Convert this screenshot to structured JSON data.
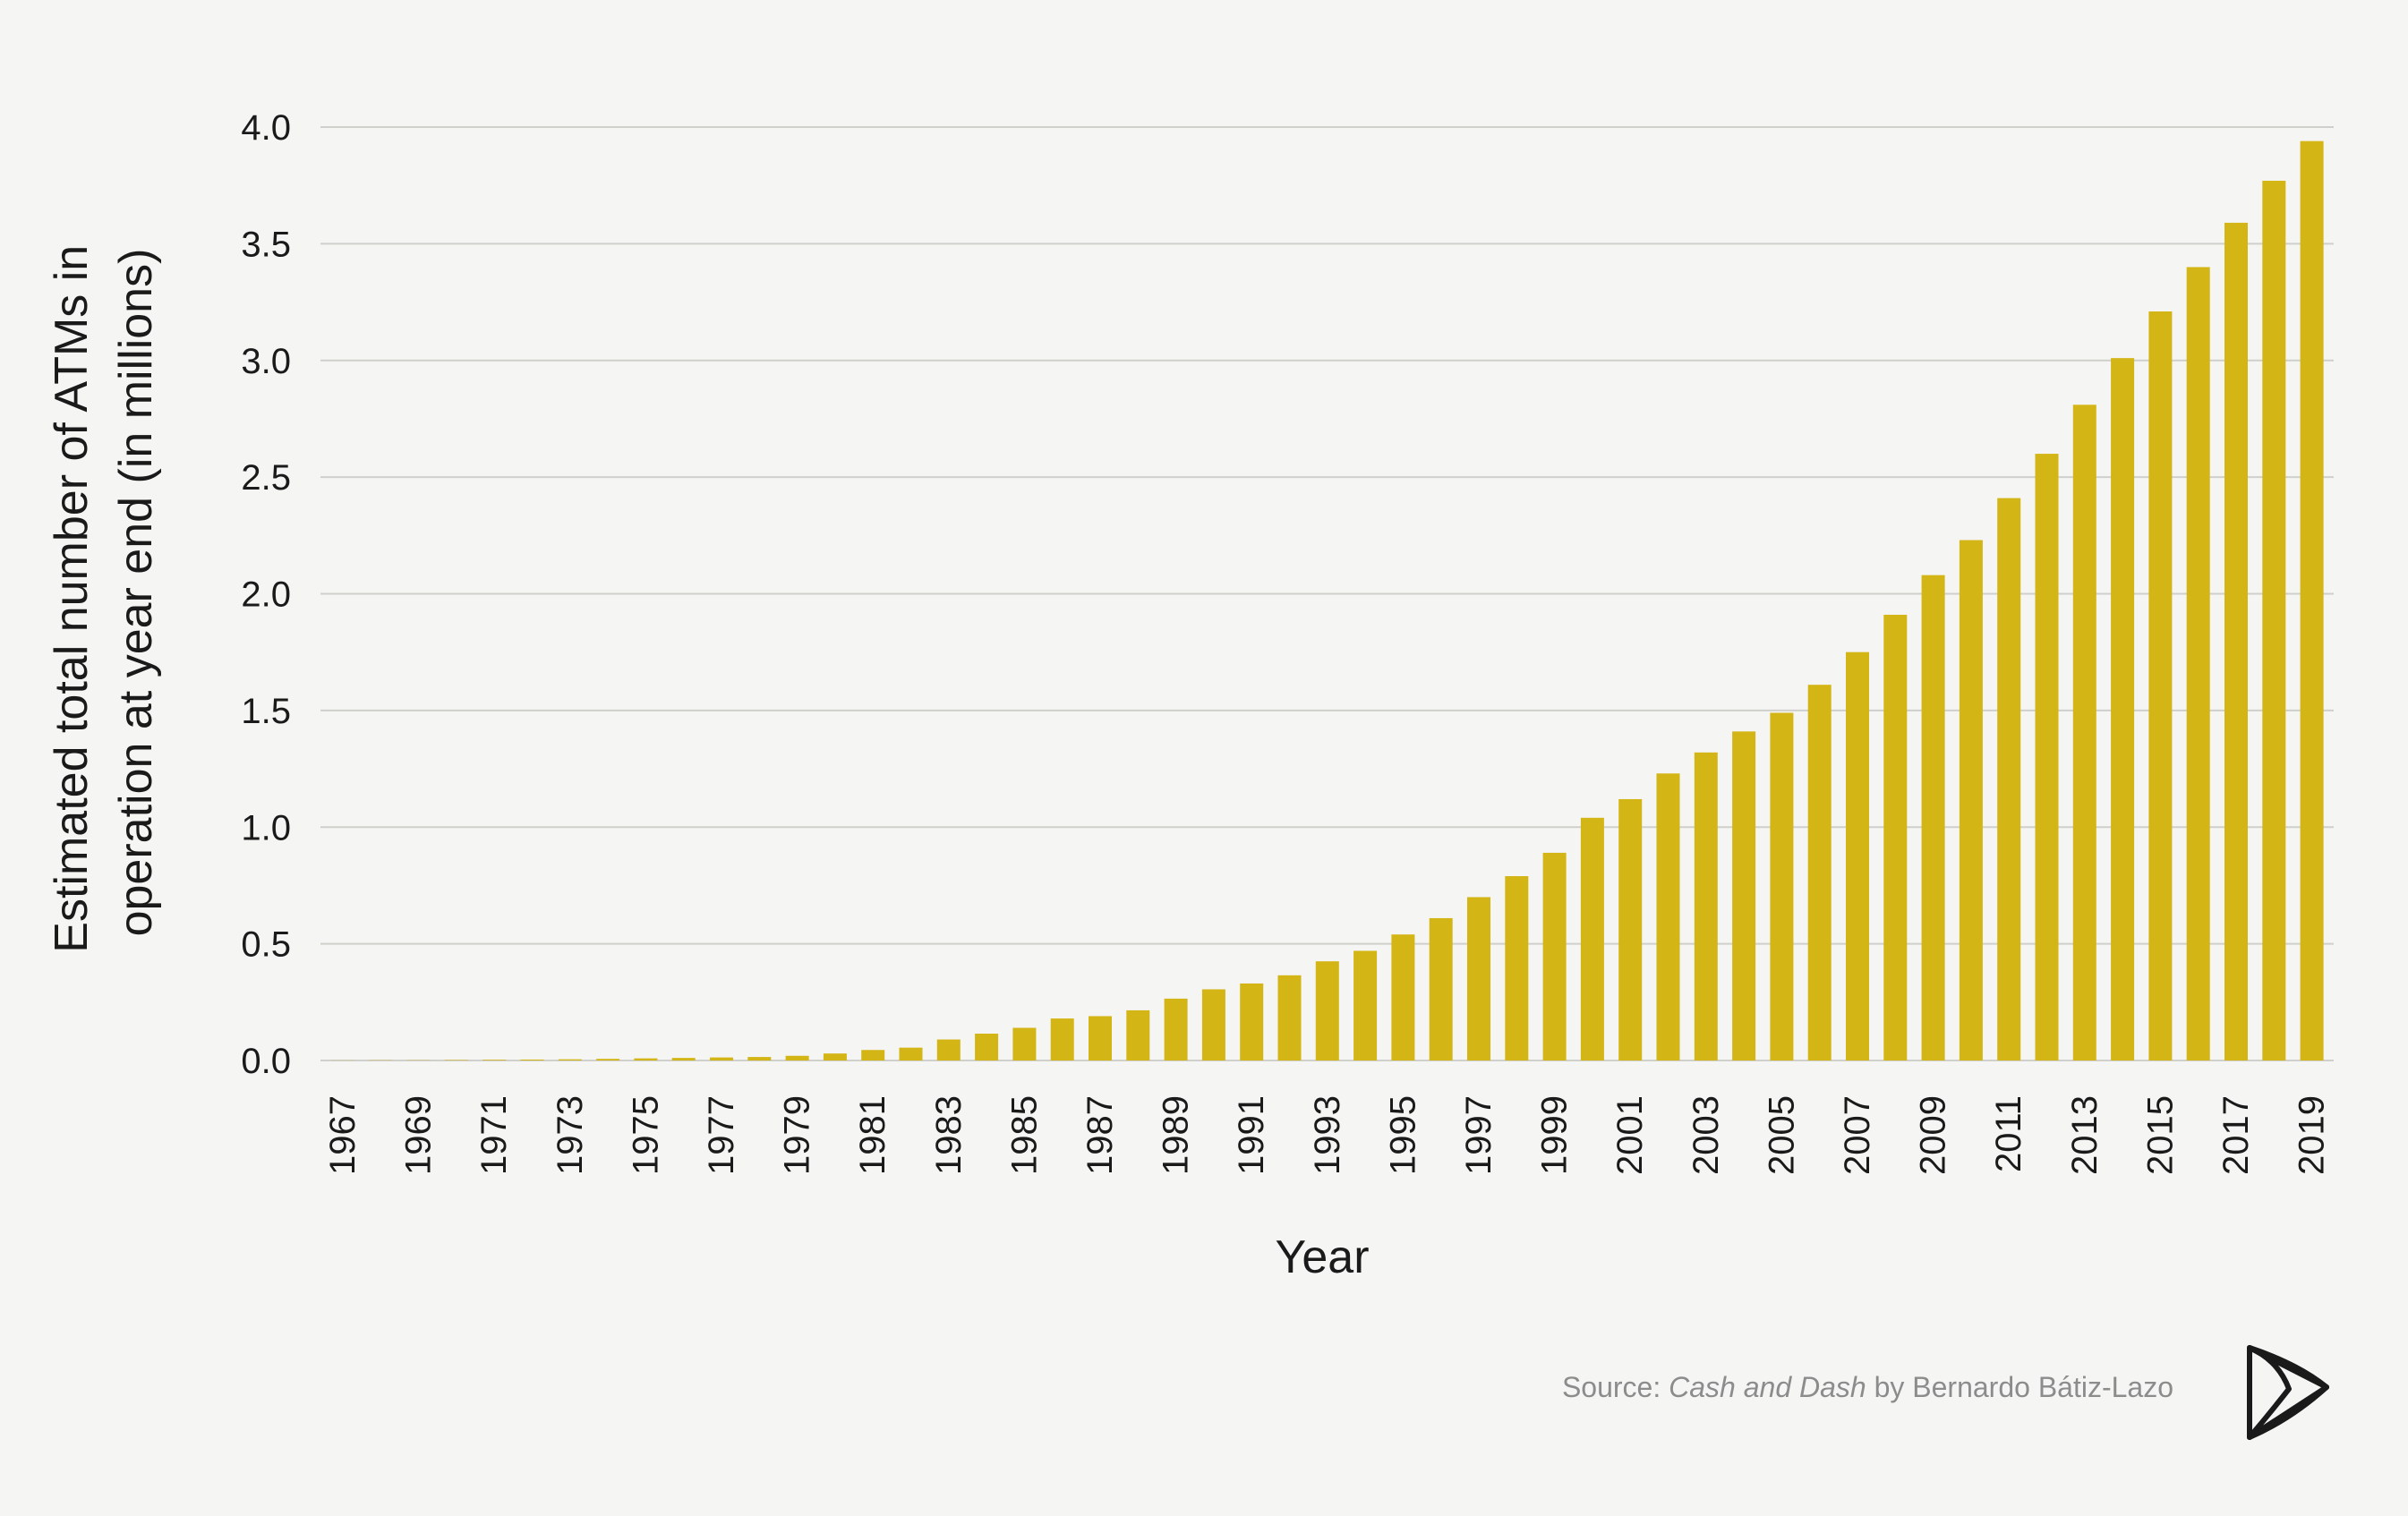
{
  "chart_data": {
    "type": "bar",
    "categories": [
      "1967",
      "1968",
      "1969",
      "1970",
      "1971",
      "1972",
      "1973",
      "1974",
      "1975",
      "1976",
      "1977",
      "1978",
      "1979",
      "1980",
      "1981",
      "1982",
      "1983",
      "1984",
      "1985",
      "1986",
      "1987",
      "1988",
      "1989",
      "1990",
      "1991",
      "1992",
      "1993",
      "1994",
      "1995",
      "1996",
      "1997",
      "1998",
      "1999",
      "2000",
      "2001",
      "2002",
      "2003",
      "2004",
      "2005",
      "2006",
      "2007",
      "2008",
      "2009",
      "2010",
      "2011",
      "2012",
      "2013",
      "2014",
      "2015",
      "2016",
      "2017",
      "2018",
      "2019"
    ],
    "x_tick_labels": [
      "1967",
      "1969",
      "1971",
      "1973",
      "1975",
      "1977",
      "1979",
      "1981",
      "1983",
      "1985",
      "1987",
      "1989",
      "1991",
      "1993",
      "1995",
      "1997",
      "1999",
      "2001",
      "2003",
      "2005",
      "2007",
      "2009",
      "2011",
      "2013",
      "2015",
      "2017",
      "2019"
    ],
    "values": [
      0.0005,
      0.001,
      0.001,
      0.002,
      0.003,
      0.004,
      0.005,
      0.007,
      0.009,
      0.011,
      0.013,
      0.015,
      0.02,
      0.03,
      0.045,
      0.055,
      0.09,
      0.115,
      0.14,
      0.18,
      0.19,
      0.215,
      0.265,
      0.305,
      0.33,
      0.365,
      0.425,
      0.47,
      0.54,
      0.61,
      0.7,
      0.79,
      0.89,
      1.04,
      1.12,
      1.23,
      1.32,
      1.41,
      1.49,
      1.61,
      1.75,
      1.91,
      2.08,
      2.23,
      2.41,
      2.6,
      2.81,
      3.01,
      3.21,
      3.4,
      3.59,
      3.77,
      3.94
    ],
    "y_tick_labels": [
      "0.0",
      "0.5",
      "1.0",
      "1.5",
      "2.0",
      "2.5",
      "3.0",
      "3.5",
      "4.0"
    ],
    "ylim": [
      0,
      4.0
    ],
    "xlabel": "Year",
    "ylabel_line1": "Estimated total number of ATMs in",
    "ylabel_line2": "operation at year end (in millions)",
    "grid": "horizontal",
    "legend": "none"
  },
  "colors": {
    "bar": "#d4b516",
    "grid": "#cfcfcb",
    "background": "#f5f5f3",
    "text": "#1a1a1a",
    "source_text": "#8c8c8c"
  },
  "source": {
    "prefix": "Source: ",
    "title": "Cash and Dash",
    "suffix": " by Bernardo Bátiz-Lazo"
  },
  "logo": {
    "icon": "triangle-stack-logo-icon"
  }
}
